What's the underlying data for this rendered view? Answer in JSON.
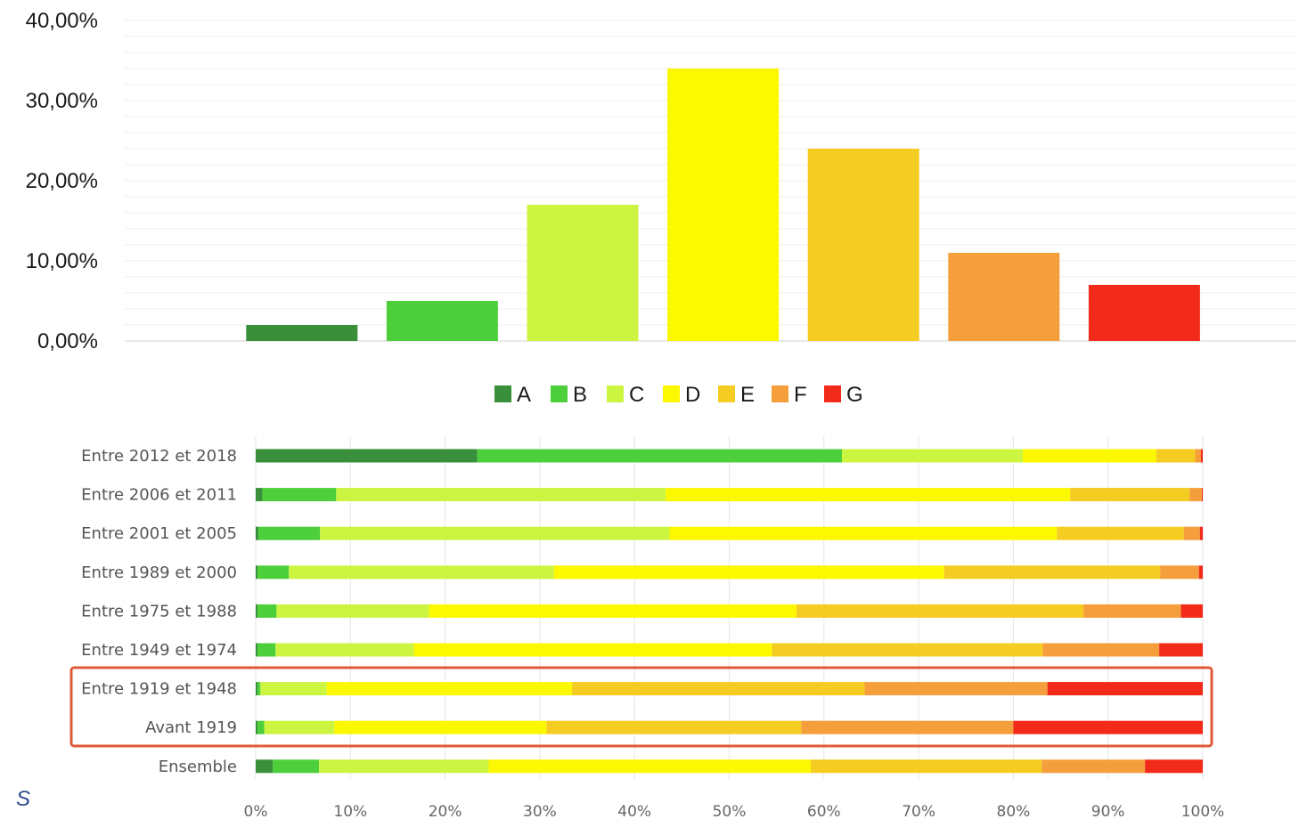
{
  "colors": {
    "A": "#3a8f3a",
    "B": "#4ccf3a",
    "C": "#ccf542",
    "D": "#fcf800",
    "E": "#f5cc22",
    "F": "#f59e3c",
    "G": "#f22a1a",
    "highlight": "#e05a3a"
  },
  "footnote": "S",
  "chart_data": [
    {
      "type": "bar",
      "categories": [
        "A",
        "B",
        "C",
        "D",
        "E",
        "F",
        "G"
      ],
      "values": [
        0.02,
        0.05,
        0.17,
        0.34,
        0.24,
        0.11,
        0.07
      ],
      "ylim": [
        0,
        0.4
      ],
      "yticks": [
        "0,00%",
        "10,00%",
        "20,00%",
        "30,00%",
        "40,00%"
      ],
      "ytick_values": [
        0,
        0.1,
        0.2,
        0.3,
        0.4
      ],
      "grid": true,
      "legend": {
        "position": "bottom",
        "entries": [
          "A",
          "B",
          "C",
          "D",
          "E",
          "F",
          "G"
        ]
      }
    },
    {
      "type": "bar",
      "orientation": "horizontal",
      "stacked": true,
      "categories": [
        "Entre 2012 et 2018",
        "Entre 2006 et 2011",
        "Entre 2001 et 2005",
        "Entre 1989 et 2000",
        "Entre 1975 et 1988",
        "Entre 1949 et 1974",
        "Entre 1919 et 1948",
        "Avant 1919",
        "Ensemble"
      ],
      "series": [
        {
          "name": "A",
          "values": [
            23.4,
            0.7,
            0.3,
            0.2,
            0.2,
            0.2,
            0.2,
            0.2,
            1.8
          ]
        },
        {
          "name": "B",
          "values": [
            38.5,
            7.8,
            6.5,
            3.3,
            2.0,
            1.9,
            0.3,
            0.7,
            4.9
          ]
        },
        {
          "name": "C",
          "values": [
            19.1,
            34.8,
            36.9,
            28.0,
            16.1,
            14.6,
            7.0,
            7.4,
            17.9
          ]
        },
        {
          "name": "D",
          "values": [
            14.1,
            42.7,
            40.9,
            41.2,
            38.8,
            37.8,
            25.9,
            22.4,
            34.0
          ]
        },
        {
          "name": "E",
          "values": [
            4.1,
            12.6,
            13.4,
            22.8,
            30.3,
            28.6,
            30.9,
            26.9,
            24.4
          ]
        },
        {
          "name": "F",
          "values": [
            0.6,
            1.3,
            1.7,
            4.1,
            10.3,
            12.3,
            19.3,
            22.4,
            10.9
          ]
        },
        {
          "name": "G",
          "values": [
            0.2,
            0.1,
            0.3,
            0.4,
            2.3,
            4.6,
            16.4,
            20.0,
            6.1
          ]
        }
      ],
      "xlim": [
        0,
        100
      ],
      "xticks": [
        "0%",
        "10%",
        "20%",
        "30%",
        "40%",
        "50%",
        "60%",
        "70%",
        "80%",
        "90%",
        "100%"
      ],
      "grid": true,
      "highlighted_categories": [
        "Entre 1919 et 1948",
        "Avant 1919"
      ]
    }
  ]
}
